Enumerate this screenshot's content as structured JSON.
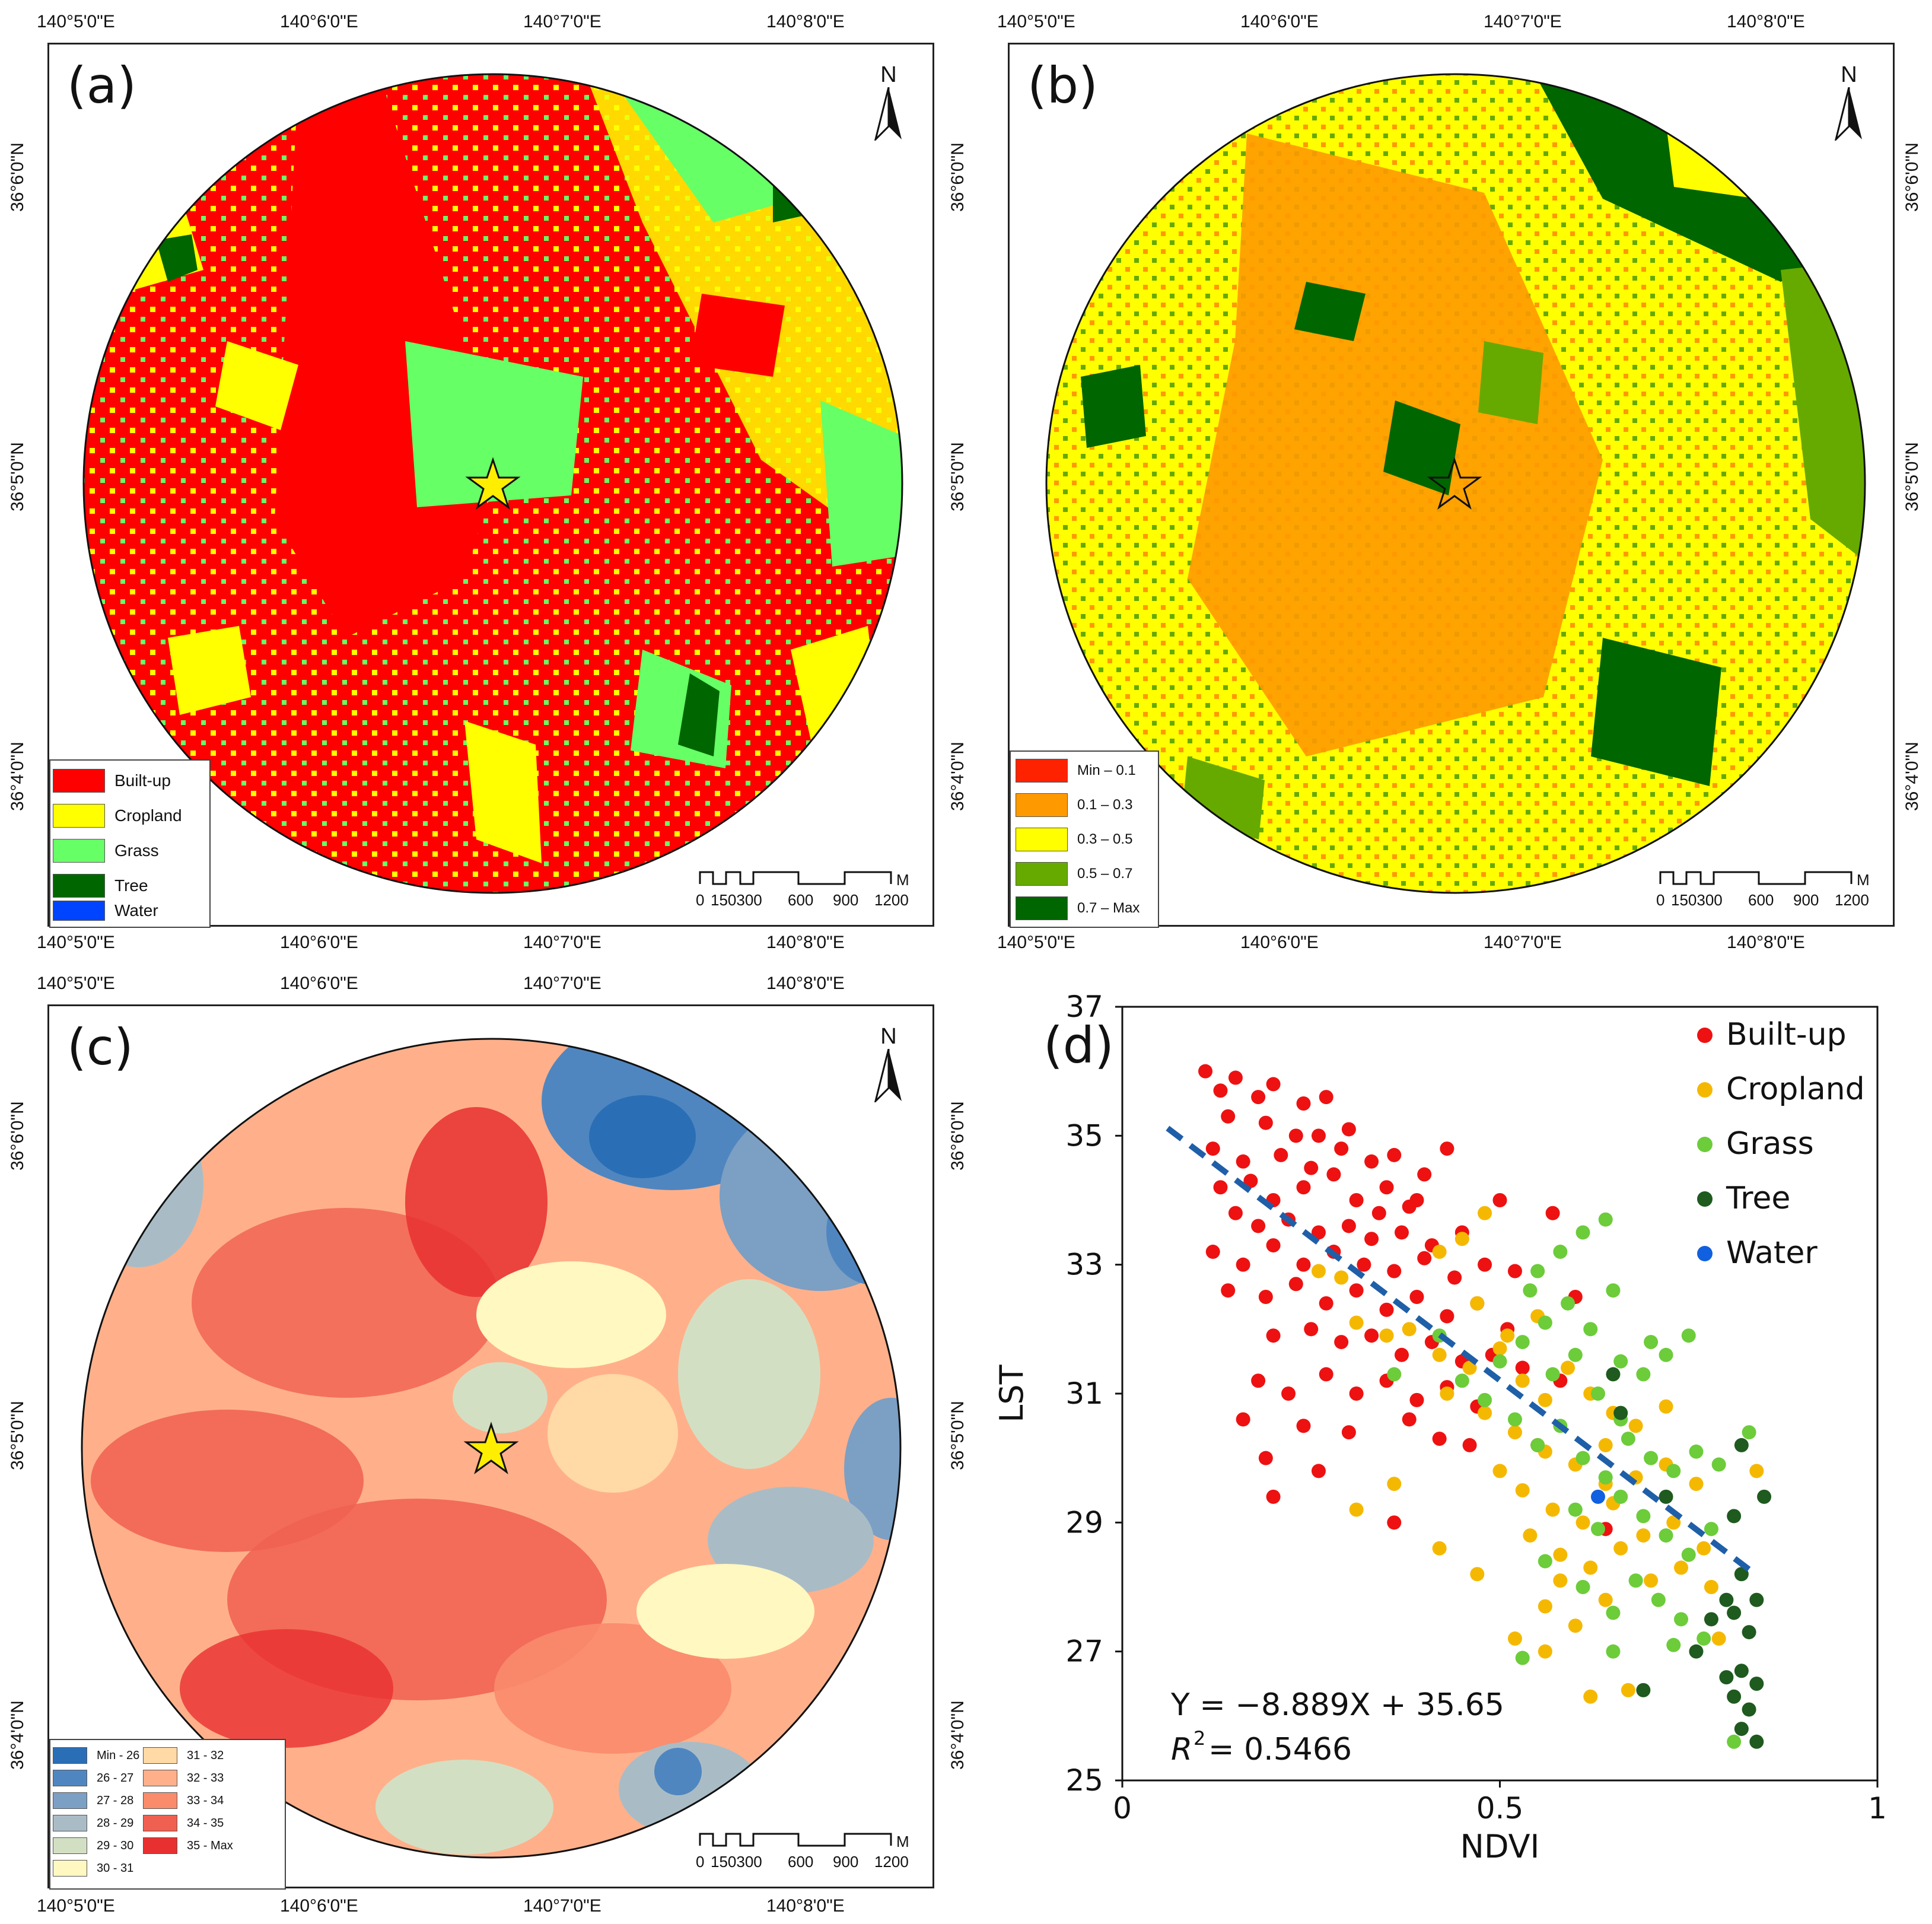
{
  "panels": {
    "a": {
      "label": "(a)",
      "legend": [
        {
          "label": "Built-up",
          "color": "#ff0000"
        },
        {
          "label": "Cropland",
          "color": "#ffff00"
        },
        {
          "label": "Grass",
          "color": "#66ff66"
        },
        {
          "label": "Tree",
          "color": "#006600"
        },
        {
          "label": "Water",
          "color": "#0044ff"
        }
      ]
    },
    "b": {
      "label": "(b)",
      "legend": [
        {
          "label": "Min – 0.1",
          "color": "#ff2200"
        },
        {
          "label": "0.1 – 0.3",
          "color": "#ff9900"
        },
        {
          "label": "0.3 – 0.5",
          "color": "#ffff00"
        },
        {
          "label": "0.5 – 0.7",
          "color": "#66aa00"
        },
        {
          "label": "0.7 – Max",
          "color": "#006600"
        }
      ]
    },
    "c": {
      "label": "(c)",
      "legend_left": [
        {
          "label": "Min - 26",
          "color": "#2a6fb5"
        },
        {
          "label": "26 - 27",
          "color": "#4f86c0"
        },
        {
          "label": "27 - 28",
          "color": "#7c9fc4"
        },
        {
          "label": "28 - 29",
          "color": "#a9bcc6"
        },
        {
          "label": "29 - 30",
          "color": "#d3dfc3"
        },
        {
          "label": "30 - 31",
          "color": "#fff8c0"
        }
      ],
      "legend_right": [
        {
          "label": "31 - 32",
          "color": "#ffd9a6"
        },
        {
          "label": "32 - 33",
          "color": "#ffb08a"
        },
        {
          "label": "33 - 34",
          "color": "#fa8b6b"
        },
        {
          "label": "34 - 35",
          "color": "#f06050"
        },
        {
          "label": "35 - Max",
          "color": "#e83030"
        }
      ]
    }
  },
  "map_axes": {
    "lon_ticks": [
      "140°5'0\"E",
      "140°6'0\"E",
      "140°7'0\"E",
      "140°8'0\"E"
    ],
    "lat_ticks": [
      "36°6'0\"N",
      "36°5'0\"N",
      "36°4'0\"N"
    ],
    "north_label": "N",
    "scale_labels": [
      "0",
      "150300",
      "600",
      "900",
      "1200"
    ],
    "scale_unit": "M"
  },
  "chart_data": {
    "type": "scatter",
    "panel_label": "(d)",
    "xlabel": "NDVI",
    "ylabel": "LST",
    "xlim": [
      0,
      1
    ],
    "ylim": [
      25,
      37
    ],
    "xticks": [
      0,
      0.5,
      1
    ],
    "xtick_labels": [
      "0",
      "0.5",
      "1"
    ],
    "yticks": [
      25,
      27,
      29,
      31,
      33,
      35,
      37
    ],
    "ytick_labels": [
      "25",
      "27",
      "29",
      "31",
      "33",
      "35",
      "37"
    ],
    "equation": "Y = −8.889X + 35.65",
    "r2_label": "R",
    "r2_value": "= 0.5466",
    "fit": {
      "slope": -8.889,
      "intercept": 35.65,
      "x_range": [
        0.06,
        0.83
      ],
      "color": "#1f5fa8"
    },
    "series": [
      {
        "name": "Built-up",
        "color": "#ee1111",
        "points": [
          [
            0.11,
            36.0
          ],
          [
            0.13,
            35.7
          ],
          [
            0.15,
            35.9
          ],
          [
            0.18,
            35.6
          ],
          [
            0.2,
            35.8
          ],
          [
            0.24,
            35.5
          ],
          [
            0.27,
            35.6
          ],
          [
            0.14,
            35.3
          ],
          [
            0.19,
            35.2
          ],
          [
            0.23,
            35.0
          ],
          [
            0.3,
            35.1
          ],
          [
            0.12,
            34.8
          ],
          [
            0.16,
            34.6
          ],
          [
            0.21,
            34.7
          ],
          [
            0.25,
            34.5
          ],
          [
            0.29,
            34.8
          ],
          [
            0.33,
            34.6
          ],
          [
            0.36,
            34.7
          ],
          [
            0.4,
            34.4
          ],
          [
            0.43,
            34.8
          ],
          [
            0.13,
            34.2
          ],
          [
            0.17,
            34.3
          ],
          [
            0.2,
            34.0
          ],
          [
            0.24,
            34.2
          ],
          [
            0.28,
            34.4
          ],
          [
            0.31,
            34.0
          ],
          [
            0.35,
            34.2
          ],
          [
            0.38,
            33.9
          ],
          [
            0.15,
            33.8
          ],
          [
            0.18,
            33.6
          ],
          [
            0.22,
            33.7
          ],
          [
            0.26,
            33.5
          ],
          [
            0.3,
            33.6
          ],
          [
            0.33,
            33.4
          ],
          [
            0.37,
            33.5
          ],
          [
            0.41,
            33.3
          ],
          [
            0.45,
            33.5
          ],
          [
            0.12,
            33.2
          ],
          [
            0.16,
            33.0
          ],
          [
            0.2,
            33.3
          ],
          [
            0.24,
            33.0
          ],
          [
            0.28,
            33.2
          ],
          [
            0.32,
            33.0
          ],
          [
            0.36,
            32.9
          ],
          [
            0.4,
            33.1
          ],
          [
            0.44,
            32.8
          ],
          [
            0.48,
            33.0
          ],
          [
            0.14,
            32.6
          ],
          [
            0.19,
            32.5
          ],
          [
            0.23,
            32.7
          ],
          [
            0.27,
            32.4
          ],
          [
            0.31,
            32.6
          ],
          [
            0.35,
            32.3
          ],
          [
            0.39,
            32.5
          ],
          [
            0.43,
            32.2
          ],
          [
            0.47,
            32.4
          ],
          [
            0.51,
            32.0
          ],
          [
            0.2,
            31.9
          ],
          [
            0.25,
            32.0
          ],
          [
            0.29,
            31.8
          ],
          [
            0.33,
            31.9
          ],
          [
            0.37,
            31.6
          ],
          [
            0.41,
            31.8
          ],
          [
            0.45,
            31.5
          ],
          [
            0.49,
            31.6
          ],
          [
            0.53,
            31.4
          ],
          [
            0.18,
            31.2
          ],
          [
            0.22,
            31.0
          ],
          [
            0.27,
            31.3
          ],
          [
            0.31,
            31.0
          ],
          [
            0.35,
            31.2
          ],
          [
            0.39,
            30.9
          ],
          [
            0.43,
            31.1
          ],
          [
            0.47,
            30.8
          ],
          [
            0.16,
            30.6
          ],
          [
            0.24,
            30.5
          ],
          [
            0.3,
            30.4
          ],
          [
            0.38,
            30.6
          ],
          [
            0.42,
            30.3
          ],
          [
            0.46,
            30.2
          ],
          [
            0.19,
            30.0
          ],
          [
            0.26,
            29.8
          ],
          [
            0.36,
            29.0
          ],
          [
            0.2,
            29.4
          ],
          [
            0.55,
            30.2
          ],
          [
            0.57,
            33.8
          ],
          [
            0.5,
            34.0
          ],
          [
            0.52,
            32.9
          ],
          [
            0.6,
            32.5
          ],
          [
            0.64,
            28.9
          ],
          [
            0.58,
            31.2
          ],
          [
            0.34,
            33.8
          ],
          [
            0.26,
            35.0
          ],
          [
            0.39,
            34.0
          ]
        ]
      },
      {
        "name": "Cropland",
        "color": "#f5b800",
        "points": [
          [
            0.26,
            32.9
          ],
          [
            0.29,
            32.8
          ],
          [
            0.31,
            32.1
          ],
          [
            0.35,
            31.9
          ],
          [
            0.38,
            32.0
          ],
          [
            0.42,
            31.6
          ],
          [
            0.46,
            31.4
          ],
          [
            0.5,
            31.7
          ],
          [
            0.53,
            31.2
          ],
          [
            0.56,
            30.9
          ],
          [
            0.59,
            31.4
          ],
          [
            0.62,
            31.0
          ],
          [
            0.65,
            30.7
          ],
          [
            0.68,
            30.5
          ],
          [
            0.72,
            30.8
          ],
          [
            0.47,
            32.4
          ],
          [
            0.51,
            31.9
          ],
          [
            0.55,
            32.2
          ],
          [
            0.43,
            31.0
          ],
          [
            0.48,
            30.7
          ],
          [
            0.52,
            30.4
          ],
          [
            0.56,
            30.1
          ],
          [
            0.6,
            29.9
          ],
          [
            0.64,
            30.2
          ],
          [
            0.68,
            29.7
          ],
          [
            0.72,
            29.9
          ],
          [
            0.76,
            29.6
          ],
          [
            0.5,
            29.8
          ],
          [
            0.53,
            29.5
          ],
          [
            0.57,
            29.2
          ],
          [
            0.61,
            29.0
          ],
          [
            0.65,
            29.3
          ],
          [
            0.69,
            28.8
          ],
          [
            0.73,
            29.0
          ],
          [
            0.77,
            28.6
          ],
          [
            0.54,
            28.8
          ],
          [
            0.58,
            28.5
          ],
          [
            0.62,
            28.3
          ],
          [
            0.66,
            28.6
          ],
          [
            0.7,
            28.1
          ],
          [
            0.74,
            28.3
          ],
          [
            0.78,
            28.0
          ],
          [
            0.56,
            27.7
          ],
          [
            0.6,
            27.4
          ],
          [
            0.64,
            27.8
          ],
          [
            0.52,
            27.2
          ],
          [
            0.56,
            27.0
          ],
          [
            0.62,
            26.3
          ],
          [
            0.67,
            26.4
          ],
          [
            0.31,
            29.2
          ],
          [
            0.36,
            29.6
          ],
          [
            0.42,
            28.6
          ],
          [
            0.47,
            28.2
          ],
          [
            0.84,
            29.8
          ],
          [
            0.79,
            27.2
          ],
          [
            0.42,
            33.2
          ],
          [
            0.45,
            33.4
          ],
          [
            0.48,
            33.8
          ],
          [
            0.58,
            28.1
          ],
          [
            0.64,
            29.6
          ]
        ]
      },
      {
        "name": "Grass",
        "color": "#6ccc3a",
        "points": [
          [
            0.5,
            31.5
          ],
          [
            0.53,
            31.8
          ],
          [
            0.56,
            32.1
          ],
          [
            0.59,
            32.4
          ],
          [
            0.62,
            32.0
          ],
          [
            0.65,
            32.6
          ],
          [
            0.55,
            32.9
          ],
          [
            0.58,
            33.2
          ],
          [
            0.61,
            33.5
          ],
          [
            0.64,
            33.7
          ],
          [
            0.57,
            31.3
          ],
          [
            0.6,
            31.6
          ],
          [
            0.63,
            31.0
          ],
          [
            0.66,
            31.5
          ],
          [
            0.69,
            31.3
          ],
          [
            0.72,
            31.6
          ],
          [
            0.75,
            31.9
          ],
          [
            0.52,
            30.6
          ],
          [
            0.55,
            30.2
          ],
          [
            0.58,
            30.5
          ],
          [
            0.61,
            30.0
          ],
          [
            0.64,
            29.7
          ],
          [
            0.67,
            30.3
          ],
          [
            0.7,
            30.0
          ],
          [
            0.73,
            29.8
          ],
          [
            0.76,
            30.1
          ],
          [
            0.79,
            29.9
          ],
          [
            0.83,
            30.4
          ],
          [
            0.6,
            29.2
          ],
          [
            0.63,
            28.9
          ],
          [
            0.66,
            29.4
          ],
          [
            0.69,
            29.1
          ],
          [
            0.72,
            28.8
          ],
          [
            0.75,
            28.5
          ],
          [
            0.78,
            28.9
          ],
          [
            0.56,
            28.4
          ],
          [
            0.61,
            28.0
          ],
          [
            0.65,
            27.6
          ],
          [
            0.68,
            28.1
          ],
          [
            0.71,
            27.8
          ],
          [
            0.74,
            27.5
          ],
          [
            0.77,
            27.2
          ],
          [
            0.65,
            27.0
          ],
          [
            0.73,
            27.1
          ],
          [
            0.81,
            25.6
          ],
          [
            0.53,
            26.9
          ],
          [
            0.48,
            30.9
          ],
          [
            0.45,
            31.2
          ],
          [
            0.42,
            31.9
          ],
          [
            0.36,
            31.3
          ],
          [
            0.66,
            30.6
          ],
          [
            0.7,
            31.8
          ],
          [
            0.54,
            32.6
          ]
        ]
      },
      {
        "name": "Tree",
        "color": "#1f5a1f",
        "points": [
          [
            0.82,
            28.2
          ],
          [
            0.81,
            27.6
          ],
          [
            0.83,
            27.3
          ],
          [
            0.8,
            27.8
          ],
          [
            0.84,
            27.8
          ],
          [
            0.78,
            27.5
          ],
          [
            0.82,
            26.7
          ],
          [
            0.84,
            26.5
          ],
          [
            0.83,
            26.1
          ],
          [
            0.82,
            25.8
          ],
          [
            0.84,
            25.6
          ],
          [
            0.85,
            29.4
          ],
          [
            0.81,
            29.1
          ],
          [
            0.82,
            30.2
          ],
          [
            0.76,
            27.0
          ],
          [
            0.8,
            26.6
          ],
          [
            0.69,
            26.4
          ],
          [
            0.66,
            30.7
          ],
          [
            0.65,
            31.3
          ],
          [
            0.72,
            29.4
          ],
          [
            0.81,
            26.3
          ]
        ]
      },
      {
        "name": "Water",
        "color": "#1060e0",
        "points": [
          [
            0.63,
            29.4
          ]
        ]
      }
    ]
  }
}
